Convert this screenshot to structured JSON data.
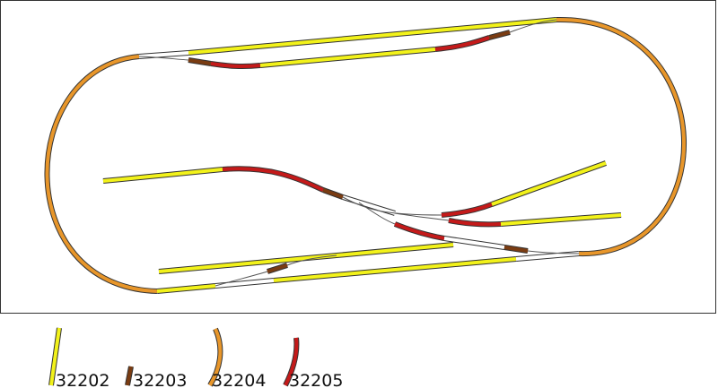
{
  "legend": [
    {
      "label": "32202"
    },
    {
      "label": "32203"
    },
    {
      "label": "32204"
    },
    {
      "label": "32205"
    }
  ]
}
